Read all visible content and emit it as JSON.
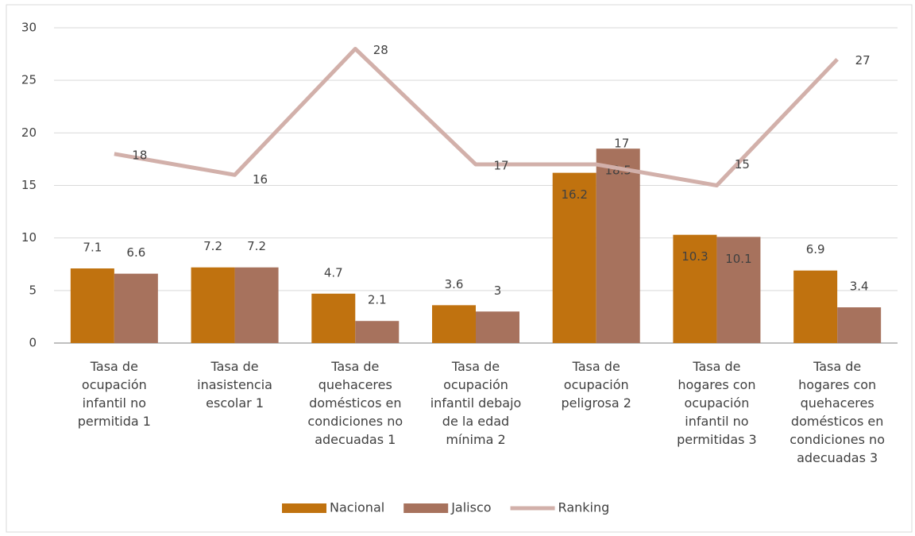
{
  "chart_data": {
    "type": "bar",
    "categories": [
      "Tasa de ocupación infantil no permitida 1",
      "Tasa de inasistencia escolar 1",
      "Tasa de quehaceres domésticos en condiciones no adecuadas 1",
      "Tasa de ocupación infantil debajo de la edad mínima 2",
      "Tasa de ocupación peligrosa 2",
      "Tasa de hogares con ocupación infantil no permitidas 3",
      "Tasa de hogares con quehaceres domésticos en condiciones no adecuadas 3"
    ],
    "series": [
      {
        "name": "Nacional",
        "type": "bar",
        "color": "#c0720f",
        "values": [
          7.1,
          7.2,
          4.7,
          3.6,
          16.2,
          10.3,
          6.9
        ]
      },
      {
        "name": "Jalisco",
        "type": "bar",
        "color": "#a7725d",
        "values": [
          6.6,
          7.2,
          2.1,
          3,
          18.5,
          10.1,
          3.4
        ]
      },
      {
        "name": "Ranking",
        "type": "line",
        "color": "#d2b0aa",
        "values": [
          18,
          16,
          28,
          17,
          17,
          15,
          27
        ]
      }
    ],
    "ylim": [
      0,
      30
    ],
    "yticks": [
      0,
      5,
      10,
      15,
      20,
      25,
      30
    ],
    "grid": true,
    "legend": "bottom"
  }
}
